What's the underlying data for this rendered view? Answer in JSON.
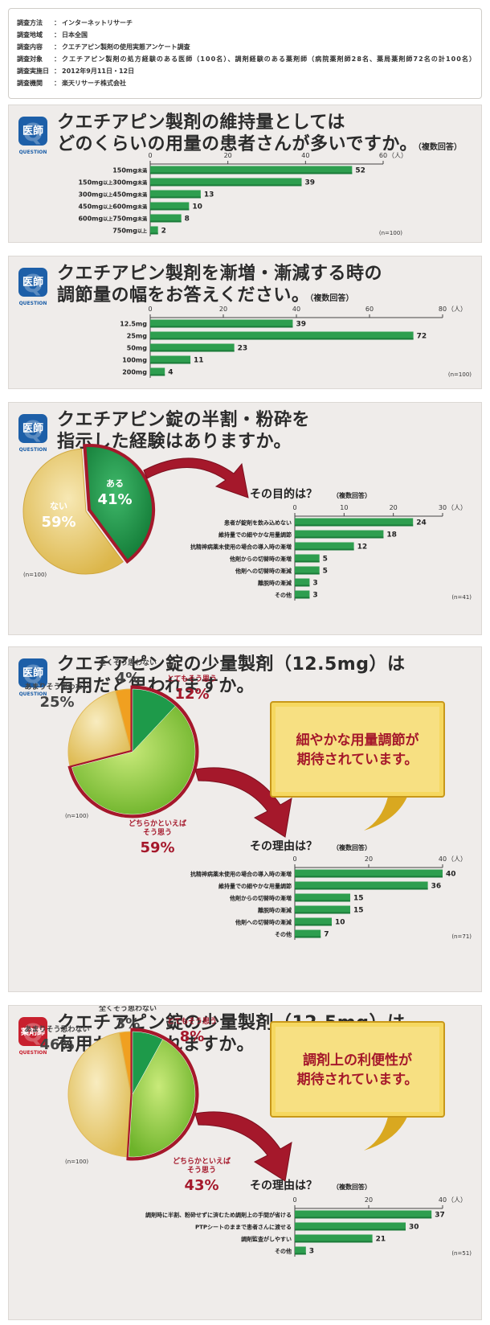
{
  "survey": {
    "rows": [
      {
        "label": "調査方法",
        "value": "インターネットリサーチ"
      },
      {
        "label": "調査地域",
        "value": "日本全国"
      },
      {
        "label": "調査内容",
        "value": "クエチアピン製剤の使用実態アンケート調査"
      },
      {
        "label": "調査対象",
        "value": "クエチアピン製剤の処方経験のある医師（100名）、調剤経験のある薬剤師（病院薬剤師28名、薬局薬剤師72名の計100名）"
      },
      {
        "label": "調査実施日",
        "value": "2012年9月11日・12日"
      },
      {
        "label": "調査機関",
        "value": "楽天リサーチ株式会社"
      }
    ]
  },
  "badges": {
    "doctor": "医師",
    "pharmacist": "薬剤師",
    "question": "QUESTION"
  },
  "panels": [
    {
      "id": "q1",
      "badge": "doctor",
      "title": [
        "クエチアピン製剤の維持量としては",
        "どのくらいの用量の患者さんが多いですか。"
      ],
      "note": "（複数回答）"
    },
    {
      "id": "q2",
      "badge": "doctor",
      "title": [
        "クエチアピン製剤を漸増・漸減する時の",
        "調節量の幅をお答えください。"
      ],
      "note": "（複数回答）"
    },
    {
      "id": "q3",
      "badge": "doctor",
      "title": [
        "クエチアピン錠の半割・粉砕を",
        "指示した経験はありますか。"
      ],
      "note": ""
    },
    {
      "id": "q4",
      "badge": "doctor",
      "title": [
        "クエチアピン錠の少量製剤（12.5mg）は",
        "有用だと思われますか。"
      ],
      "note": ""
    },
    {
      "id": "q5",
      "badge": "pharmacist",
      "title": [
        "クエチアピン錠の少量製剤（12.5mg）は",
        "有用だと思われますか。"
      ],
      "note": ""
    }
  ],
  "callouts": {
    "q4": [
      "細やかな用量調節が",
      "期待されています。"
    ],
    "q5": [
      "調剤上の利便性が",
      "期待されています。"
    ]
  },
  "colors": {
    "bar": "#2e9e4f",
    "barDark": "#1a7a38",
    "accent": "#a5182b",
    "pieYellow": "#e4c872",
    "pieGreen": "#8fcb3c",
    "pieOrange": "#f0a020",
    "pieDarkGreen": "#1e9a4a",
    "callout": "#e8c03a"
  },
  "chart_data": [
    {
      "id": "q1",
      "type": "bar",
      "unit": "（人）",
      "xlim": [
        0,
        60
      ],
      "ticks": [
        0,
        20,
        40,
        60
      ],
      "n": "(n=100)",
      "categories": [
        [
          "150mg",
          "未満"
        ],
        [
          "150mg",
          "以上",
          "300mg",
          "未満"
        ],
        [
          "300mg",
          "以上",
          "450mg",
          "未満"
        ],
        [
          "450mg",
          "以上",
          "600mg",
          "未満"
        ],
        [
          "600mg",
          "以上",
          "750mg",
          "未満"
        ],
        [
          "750mg",
          "以上"
        ]
      ],
      "values": [
        52,
        39,
        13,
        10,
        8,
        2
      ]
    },
    {
      "id": "q2",
      "type": "bar",
      "unit": "（人）",
      "xlim": [
        0,
        80
      ],
      "ticks": [
        0,
        20,
        40,
        60,
        80
      ],
      "n": "(n=100)",
      "categories": [
        [
          "12.5mg"
        ],
        [
          "25mg"
        ],
        [
          "50mg"
        ],
        [
          "100mg"
        ],
        [
          "200mg"
        ]
      ],
      "values": [
        39,
        72,
        23,
        11,
        4
      ]
    },
    {
      "id": "q3-pie",
      "type": "pie",
      "n": "(n=100)",
      "slices": [
        {
          "label": "ある",
          "value": 41
        },
        {
          "label": "ない",
          "value": 59
        }
      ]
    },
    {
      "id": "q3-bar",
      "type": "bar",
      "title": "その目的は？",
      "note": "（複数回答）",
      "unit": "（人）",
      "xlim": [
        0,
        30
      ],
      "ticks": [
        0,
        10,
        20,
        30
      ],
      "n": "(n=41)",
      "categories": [
        [
          "患者が錠剤を飲み込めない"
        ],
        [
          "維持量での細やかな用量調節"
        ],
        [
          "抗精神病薬未使用の場合の導入時の漸増"
        ],
        [
          "他剤からの切替時の漸増"
        ],
        [
          "他剤への切替時の漸減"
        ],
        [
          "離脱時の漸減"
        ],
        [
          "その他"
        ]
      ],
      "values": [
        24,
        18,
        12,
        5,
        5,
        3,
        3
      ]
    },
    {
      "id": "q4-pie",
      "type": "pie",
      "n": "(n=100)",
      "slices": [
        {
          "label": "とてもそう思う",
          "value": 12
        },
        {
          "label": "どちらかといえばそう思う",
          "value": 59
        },
        {
          "label": "あまりそう思わない",
          "value": 25
        },
        {
          "label": "全くそう思わない",
          "value": 4
        }
      ]
    },
    {
      "id": "q4-bar",
      "type": "bar",
      "title": "その理由は？",
      "note": "（複数回答）",
      "unit": "（人）",
      "xlim": [
        0,
        40
      ],
      "ticks": [
        0,
        20,
        40
      ],
      "n": "(n=71)",
      "categories": [
        [
          "抗精神病薬未使用の場合の導入時の漸増"
        ],
        [
          "維持量での細やかな用量調節"
        ],
        [
          "他剤からの切替時の漸増"
        ],
        [
          "離脱時の漸減"
        ],
        [
          "他剤への切替時の漸減"
        ],
        [
          "その他"
        ]
      ],
      "values": [
        40,
        36,
        15,
        15,
        10,
        7
      ]
    },
    {
      "id": "q5-pie",
      "type": "pie",
      "n": "(n=100)",
      "slices": [
        {
          "label": "とてもそう思う",
          "value": 8
        },
        {
          "label": "どちらかといえばそう思う",
          "value": 43
        },
        {
          "label": "あまりそう思わない",
          "value": 46
        },
        {
          "label": "全くそう思わない",
          "value": 3
        }
      ]
    },
    {
      "id": "q5-bar",
      "type": "bar",
      "title": "その理由は？",
      "note": "（複数回答）",
      "unit": "（人）",
      "xlim": [
        0,
        40
      ],
      "ticks": [
        0,
        20,
        40
      ],
      "n": "(n=51)",
      "categories": [
        [
          "調剤時に半割、粉砕せずに済むため調剤上の手間が省ける"
        ],
        [
          "PTPシートのままで患者さんに渡せる"
        ],
        [
          "調剤監査がしやすい"
        ],
        [
          "その他"
        ]
      ],
      "values": [
        37,
        30,
        21,
        3
      ]
    }
  ]
}
